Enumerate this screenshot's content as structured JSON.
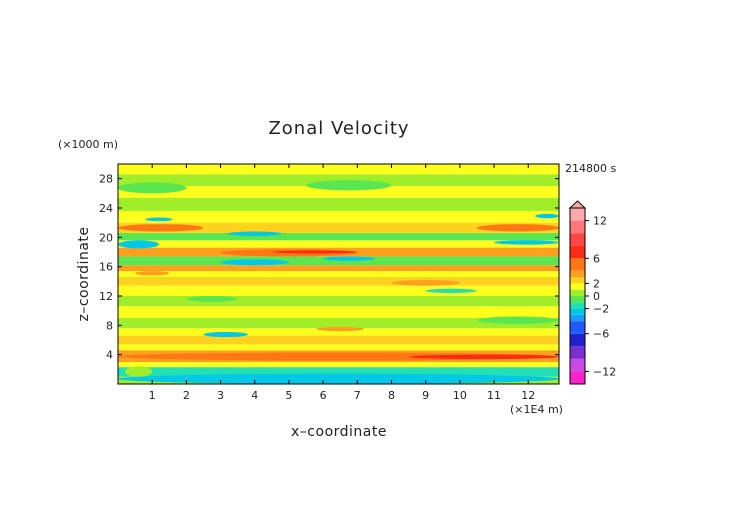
{
  "chart_data": {
    "type": "heatmap",
    "title": "Zonal Velocity",
    "xlabel": "x–coordinate",
    "ylabel": "z–coordinate",
    "x_unit": "(×1E4 m)",
    "y_unit": "(×1000 m)",
    "time_label": "214800 s",
    "xlim": [
      0,
      12.9
    ],
    "ylim": [
      0,
      30
    ],
    "x_ticks": [
      1,
      2,
      3,
      4,
      5,
      6,
      7,
      8,
      9,
      10,
      11,
      12
    ],
    "y_ticks": [
      4,
      8,
      12,
      16,
      20,
      24,
      28
    ],
    "x_tick_labels": [
      "1",
      "2",
      "3",
      "4",
      "5",
      "6",
      "7",
      "8",
      "9",
      "10",
      "11",
      "12"
    ],
    "y_tick_labels": [
      "4",
      "8",
      "12",
      "16",
      "20",
      "24",
      "28"
    ],
    "colorbar": {
      "min": -14,
      "max": 14,
      "tick_values": [
        12,
        6,
        2,
        0,
        -2,
        -6,
        -12
      ],
      "tick_labels": [
        "12",
        "6",
        "2",
        "0",
        "−2",
        "−6",
        "−12"
      ],
      "extend_top": true,
      "levels": [
        {
          "from": -14,
          "to": -12,
          "color": "#ff22c8"
        },
        {
          "from": -12,
          "to": -10,
          "color": "#c84be6"
        },
        {
          "from": -10,
          "to": -8,
          "color": "#7a2fd0"
        },
        {
          "from": -8,
          "to": -6,
          "color": "#2222cc"
        },
        {
          "from": -6,
          "to": -4,
          "color": "#1e5aff"
        },
        {
          "from": -4,
          "to": -3,
          "color": "#1e9bff"
        },
        {
          "from": -3,
          "to": -2,
          "color": "#00c8e6"
        },
        {
          "from": -2,
          "to": -1,
          "color": "#22e0b4"
        },
        {
          "from": -1,
          "to": 0,
          "color": "#5ae650"
        },
        {
          "from": 0,
          "to": 1,
          "color": "#a0ee2a"
        },
        {
          "from": 1,
          "to": 2,
          "color": "#ffff1e"
        },
        {
          "from": 2,
          "to": 3,
          "color": "#ffd21e"
        },
        {
          "from": 3,
          "to": 4,
          "color": "#ffa01e"
        },
        {
          "from": 4,
          "to": 6,
          "color": "#ff7814"
        },
        {
          "from": 6,
          "to": 8,
          "color": "#ff2a14"
        },
        {
          "from": 8,
          "to": 10,
          "color": "#ff4646"
        },
        {
          "from": 10,
          "to": 12,
          "color": "#ff7878"
        },
        {
          "from": 12,
          "to": 14,
          "color": "#ffaaaa"
        }
      ]
    },
    "bands": [
      {
        "z": [
          0.0,
          1.0
        ],
        "value": 0.5
      },
      {
        "z": [
          1.0,
          2.3
        ],
        "value": -1.5
      },
      {
        "z": [
          2.3,
          3.0
        ],
        "value": 1.5
      },
      {
        "z": [
          3.0,
          4.6
        ],
        "value": 3.5
      },
      {
        "z": [
          4.6,
          5.4
        ],
        "value": 1.5
      },
      {
        "z": [
          5.4,
          6.6
        ],
        "value": 2.5
      },
      {
        "z": [
          6.6,
          7.6
        ],
        "value": 1.5
      },
      {
        "z": [
          7.6,
          9.0
        ],
        "value": 0.5
      },
      {
        "z": [
          9.0,
          10.6
        ],
        "value": 1.5
      },
      {
        "z": [
          10.6,
          12.0
        ],
        "value": 0.5
      },
      {
        "z": [
          12.0,
          13.4
        ],
        "value": 1.5
      },
      {
        "z": [
          13.4,
          14.6
        ],
        "value": 2.5
      },
      {
        "z": [
          14.6,
          15.4
        ],
        "value": 1.5
      },
      {
        "z": [
          15.4,
          16.2
        ],
        "value": 3.5
      },
      {
        "z": [
          16.2,
          17.4
        ],
        "value": -0.5
      },
      {
        "z": [
          17.4,
          18.6
        ],
        "value": 3.5
      },
      {
        "z": [
          18.6,
          19.6
        ],
        "value": 1.5
      },
      {
        "z": [
          19.6,
          20.6
        ],
        "value": -0.5
      },
      {
        "z": [
          20.6,
          22.0
        ],
        "value": 2.5
      },
      {
        "z": [
          22.0,
          23.6
        ],
        "value": 1.5
      },
      {
        "z": [
          23.6,
          25.4
        ],
        "value": 0.5
      },
      {
        "z": [
          25.4,
          27.0
        ],
        "value": 1.5
      },
      {
        "z": [
          27.0,
          28.6
        ],
        "value": 0.5
      },
      {
        "z": [
          28.6,
          30.0
        ],
        "value": 1.5
      }
    ],
    "features": [
      {
        "x": [
          0.0,
          12.9
        ],
        "z": [
          3.2,
          4.3
        ],
        "value": 5
      },
      {
        "x": [
          8.5,
          12.9
        ],
        "z": [
          3.4,
          4.0
        ],
        "value": 7
      },
      {
        "x": [
          0.0,
          12.9
        ],
        "z": [
          0.0,
          1.4
        ],
        "value": -2.5
      },
      {
        "x": [
          0.2,
          1.0
        ],
        "z": [
          1.0,
          2.4
        ],
        "value": 0.5
      },
      {
        "x": [
          3.0,
          7.0
        ],
        "z": [
          17.4,
          18.4
        ],
        "value": 5
      },
      {
        "x": [
          4.5,
          7.0
        ],
        "z": [
          17.8,
          18.2
        ],
        "value": 7
      },
      {
        "x": [
          0.0,
          2.5
        ],
        "z": [
          20.8,
          21.8
        ],
        "value": 5
      },
      {
        "x": [
          10.5,
          12.9
        ],
        "z": [
          20.8,
          21.8
        ],
        "value": 5
      },
      {
        "x": [
          0.0,
          1.2
        ],
        "z": [
          18.5,
          19.6
        ],
        "value": -2.5
      },
      {
        "x": [
          3.0,
          5.0
        ],
        "z": [
          16.2,
          17.0
        ],
        "value": -2.5
      },
      {
        "x": [
          3.2,
          4.8
        ],
        "z": [
          20.2,
          20.8
        ],
        "value": -2.5
      },
      {
        "x": [
          6.0,
          7.5
        ],
        "z": [
          16.8,
          17.4
        ],
        "value": -2.5
      },
      {
        "x": [
          11.0,
          12.9
        ],
        "z": [
          19.0,
          19.6
        ],
        "value": -2.5
      },
      {
        "x": [
          0.8,
          1.6
        ],
        "z": [
          22.2,
          22.7
        ],
        "value": -2.5
      },
      {
        "x": [
          12.2,
          12.9
        ],
        "z": [
          22.6,
          23.2
        ],
        "value": -2.5
      },
      {
        "x": [
          2.5,
          3.8
        ],
        "z": [
          6.4,
          7.1
        ],
        "value": -2.5
      },
      {
        "x": [
          5.8,
          7.2
        ],
        "z": [
          7.2,
          7.8
        ],
        "value": 3.5
      },
      {
        "x": [
          0.0,
          2.0
        ],
        "z": [
          26.0,
          27.5
        ],
        "value": -0.5
      },
      {
        "x": [
          5.5,
          8.0
        ],
        "z": [
          26.4,
          27.8
        ],
        "value": -0.5
      },
      {
        "x": [
          10.5,
          12.9
        ],
        "z": [
          8.2,
          9.2
        ],
        "value": -0.5
      },
      {
        "x": [
          0.5,
          1.5
        ],
        "z": [
          14.8,
          15.4
        ],
        "value": 3.5
      },
      {
        "x": [
          8.0,
          10.0
        ],
        "z": [
          13.4,
          14.2
        ],
        "value": 3.5
      },
      {
        "x": [
          2.0,
          3.5
        ],
        "z": [
          11.2,
          12.0
        ],
        "value": -0.5
      },
      {
        "x": [
          9.0,
          10.5
        ],
        "z": [
          12.4,
          13.0
        ],
        "value": -1.5
      }
    ],
    "grid": false,
    "legend_position": "right"
  }
}
